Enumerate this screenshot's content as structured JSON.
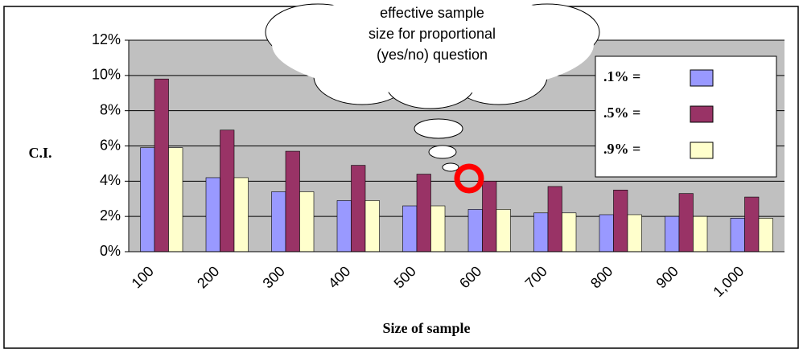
{
  "chart_data": {
    "type": "bar",
    "annotation": "effective sample size for proportional (yes/no) question",
    "y_label": "C.I.",
    "x_label": "Size of sample",
    "categories": [
      "100",
      "200",
      "300",
      "400",
      "500",
      "600",
      "700",
      "800",
      "900",
      "1,000"
    ],
    "series": [
      {
        "name": ".1% =",
        "color": "#9999ff",
        "values": [
          5.9,
          4.2,
          3.4,
          2.9,
          2.6,
          2.4,
          2.2,
          2.1,
          2.0,
          1.9
        ]
      },
      {
        "name": ".5% =",
        "color": "#993366",
        "values": [
          9.8,
          6.9,
          5.7,
          4.9,
          4.4,
          4.0,
          3.7,
          3.5,
          3.3,
          3.1
        ]
      },
      {
        "name": ".9% =",
        "color": "#ffffcc",
        "values": [
          5.9,
          4.2,
          3.4,
          2.9,
          2.6,
          2.4,
          2.2,
          2.1,
          2.0,
          1.9
        ]
      }
    ],
    "ylim": [
      0,
      12
    ],
    "yticks": [
      {
        "value": 0,
        "label": "0%"
      },
      {
        "value": 2,
        "label": "2%"
      },
      {
        "value": 4,
        "label": "4%"
      },
      {
        "value": 6,
        "label": "6%"
      },
      {
        "value": 8,
        "label": "8%"
      },
      {
        "value": 10,
        "label": "10%"
      },
      {
        "value": 12,
        "label": "12%"
      }
    ],
    "grid": true,
    "legend": "right"
  }
}
